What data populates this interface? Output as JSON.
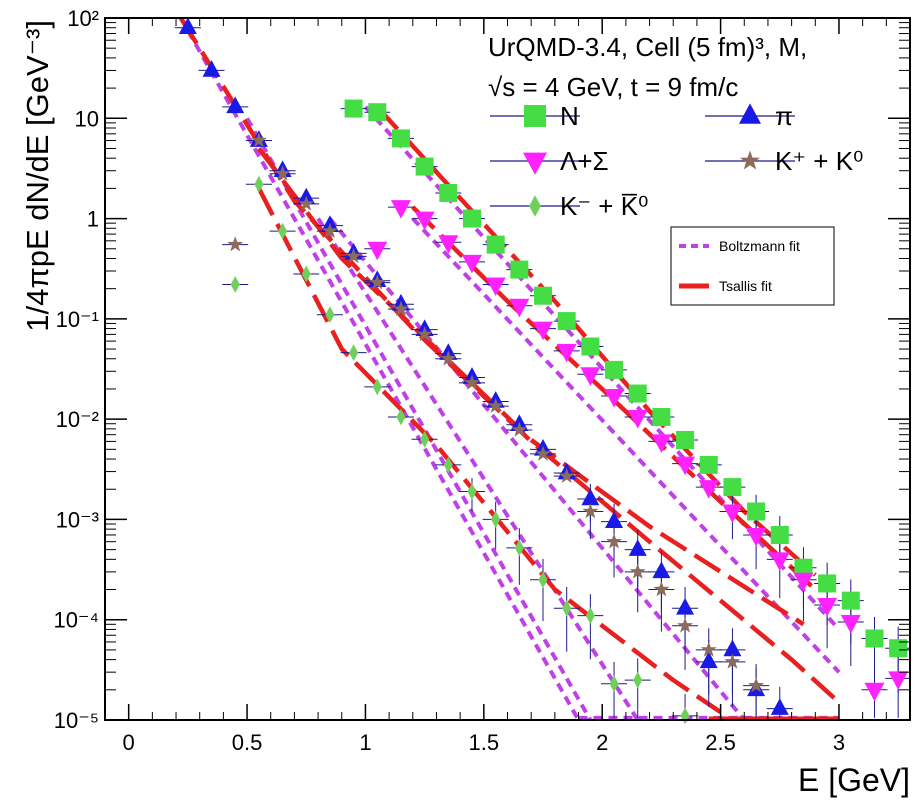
{
  "chart_data": {
    "type": "scatter",
    "xlabel": "E [GeV]",
    "ylabel": "1/4πpE dN/dE [GeV⁻³]",
    "xlim": [
      -0.1,
      3.3
    ],
    "ylim": [
      1e-05,
      100
    ],
    "yscale": "log",
    "x_ticks": [
      "0",
      "0.5",
      "1",
      "1.5",
      "2",
      "2.5",
      "3"
    ],
    "y_ticks": [
      "10⁻⁵",
      "10⁻⁴",
      "10⁻³",
      "10⁻²",
      "10⁻¹",
      "1",
      "10",
      "10²"
    ],
    "annotation_line1": "UrQMD-3.4, Cell (5 fm)³,        M,",
    "annotation_line2": "√s = 4 GeV, t = 9 fm/c",
    "fit_legend": [
      "Boltzmann fit",
      "Tsallis fit"
    ],
    "series": [
      {
        "name": "N",
        "color": "#44dd44",
        "marker": "square",
        "points": [
          [
            0.95,
            12.5
          ],
          [
            1.05,
            11.5
          ],
          [
            1.15,
            6.3
          ],
          [
            1.25,
            3.3
          ],
          [
            1.35,
            1.8
          ],
          [
            1.45,
            1.0
          ],
          [
            1.55,
            0.55
          ],
          [
            1.65,
            0.31
          ],
          [
            1.75,
            0.17
          ],
          [
            1.85,
            0.095
          ],
          [
            1.95,
            0.053
          ],
          [
            2.05,
            0.031
          ],
          [
            2.15,
            0.018
          ],
          [
            2.25,
            0.0105
          ],
          [
            2.35,
            0.0062
          ],
          [
            2.45,
            0.0035
          ],
          [
            2.55,
            0.0021
          ],
          [
            2.65,
            0.0012
          ],
          [
            2.75,
            0.0007
          ],
          [
            2.85,
            0.00033
          ],
          [
            2.95,
            0.00023
          ],
          [
            3.05,
            0.000155
          ],
          [
            3.15,
            6.5e-05
          ],
          [
            3.25,
            5.2e-05
          ]
        ]
      },
      {
        "name": "π",
        "color": "#1a1ae6",
        "marker": "triangle-up",
        "points": [
          [
            0.25,
            80
          ],
          [
            0.35,
            30
          ],
          [
            0.45,
            13
          ],
          [
            0.55,
            6
          ],
          [
            0.65,
            3
          ],
          [
            0.75,
            1.6
          ],
          [
            0.85,
            0.85
          ],
          [
            0.95,
            0.45
          ],
          [
            1.05,
            0.24
          ],
          [
            1.15,
            0.14
          ],
          [
            1.25,
            0.078
          ],
          [
            1.35,
            0.045
          ],
          [
            1.45,
            0.026
          ],
          [
            1.55,
            0.015
          ],
          [
            1.65,
            0.0088
          ],
          [
            1.75,
            0.005
          ],
          [
            1.85,
            0.0029
          ],
          [
            1.95,
            0.0016
          ],
          [
            2.05,
            0.00095
          ],
          [
            2.15,
            0.0005
          ],
          [
            2.25,
            0.0003
          ],
          [
            2.35,
            0.00013
          ],
          [
            2.45,
            3.8e-05
          ],
          [
            2.55,
            5e-05
          ],
          [
            2.65,
            2e-05
          ],
          [
            2.75,
            1.3e-05
          ]
        ]
      },
      {
        "name": "Λ+Σ",
        "color": "#ff22ff",
        "marker": "triangle-down",
        "points": [
          [
            1.05,
            0.5
          ],
          [
            1.15,
            1.3
          ],
          [
            1.25,
            1.0
          ],
          [
            1.35,
            0.58
          ],
          [
            1.45,
            0.37
          ],
          [
            1.55,
            0.22
          ],
          [
            1.65,
            0.135
          ],
          [
            1.75,
            0.08
          ],
          [
            1.85,
            0.048
          ],
          [
            1.95,
            0.028
          ],
          [
            2.05,
            0.017
          ],
          [
            2.15,
            0.0105
          ],
          [
            2.25,
            0.006
          ],
          [
            2.35,
            0.0036
          ],
          [
            2.45,
            0.0021
          ],
          [
            2.55,
            0.0012
          ],
          [
            2.65,
            0.0007
          ],
          [
            2.75,
            0.0004
          ],
          [
            2.85,
            0.00025
          ],
          [
            2.95,
            0.00014
          ],
          [
            3.05,
            9.5e-05
          ],
          [
            3.15,
            2e-05
          ],
          [
            3.25,
            2.6e-05
          ]
        ]
      },
      {
        "name": "K⁺ + K⁰",
        "color": "#8b6b5b",
        "marker": "star",
        "points": [
          [
            0.45,
            0.55
          ],
          [
            0.55,
            6
          ],
          [
            0.65,
            2.8
          ],
          [
            0.75,
            1.4
          ],
          [
            0.85,
            0.75
          ],
          [
            0.95,
            0.42
          ],
          [
            1.05,
            0.23
          ],
          [
            1.15,
            0.125
          ],
          [
            1.25,
            0.07
          ],
          [
            1.35,
            0.04
          ],
          [
            1.45,
            0.023
          ],
          [
            1.55,
            0.0135
          ],
          [
            1.65,
            0.0078
          ],
          [
            1.75,
            0.0045
          ],
          [
            1.85,
            0.0027
          ],
          [
            1.95,
            0.0012
          ],
          [
            2.05,
            0.0006
          ],
          [
            2.15,
            0.0003
          ],
          [
            2.25,
            0.0002
          ],
          [
            2.35,
            8.7e-05
          ],
          [
            2.45,
            5e-05
          ],
          [
            2.55,
            3.8e-05
          ],
          [
            2.65,
            2.2e-05
          ]
        ]
      },
      {
        "name": "K⁻ + K̅⁰",
        "color": "#6ecf5a",
        "marker": "diamond",
        "points": [
          [
            0.45,
            0.22
          ],
          [
            0.55,
            2.2
          ],
          [
            0.65,
            0.75
          ],
          [
            0.75,
            0.28
          ],
          [
            0.85,
            0.11
          ],
          [
            0.95,
            0.046
          ],
          [
            1.05,
            0.021
          ],
          [
            1.15,
            0.0105
          ],
          [
            1.25,
            0.0063
          ],
          [
            1.35,
            0.0035
          ],
          [
            1.45,
            0.0019
          ],
          [
            1.55,
            0.001
          ],
          [
            1.65,
            0.00052
          ],
          [
            1.75,
            0.00025
          ],
          [
            1.85,
            0.00013
          ],
          [
            1.95,
            0.00011
          ],
          [
            2.05,
            2.3e-05
          ],
          [
            2.15,
            2.5e-05
          ],
          [
            2.35,
            1.1e-05
          ]
        ]
      }
    ]
  }
}
